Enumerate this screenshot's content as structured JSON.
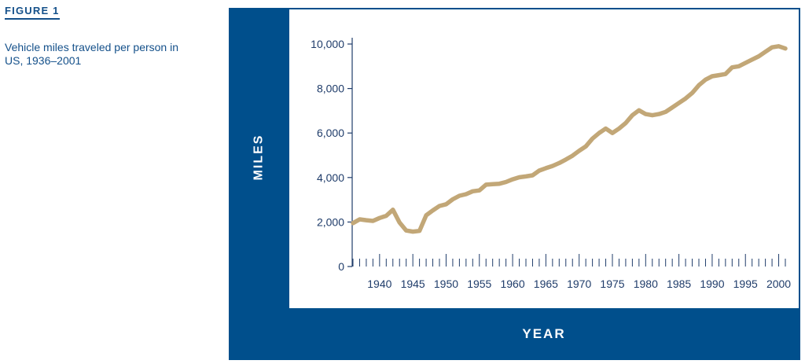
{
  "figure": {
    "label": "FIGURE 1",
    "caption": "Vehicle miles traveled per person in US, 1936–2001"
  },
  "colors": {
    "frame": "#004f8c",
    "line": "#c2a777",
    "text": "#14508a"
  },
  "chart_data": {
    "type": "line",
    "xlabel": "YEAR",
    "ylabel": "MILES",
    "ylim": [
      0,
      10000
    ],
    "xlim": [
      1936,
      2001
    ],
    "yticks": [
      0,
      2000,
      4000,
      6000,
      8000,
      10000
    ],
    "ytick_labels": [
      "0",
      "2,000",
      "4,000",
      "6,000",
      "8,000",
      "10,000"
    ],
    "xticks": [
      1940,
      1945,
      1950,
      1955,
      1960,
      1965,
      1970,
      1975,
      1980,
      1985,
      1990,
      1995,
      2000
    ],
    "xtick_labels": [
      "1940",
      "1945",
      "1950",
      "1955",
      "1960",
      "1965",
      "1970",
      "1975",
      "1980",
      "1985",
      "1990",
      "1995",
      "2000"
    ],
    "grid": false,
    "series": [
      {
        "x": [
          1936,
          1937,
          1938,
          1939,
          1940,
          1941,
          1942,
          1943,
          1944,
          1945,
          1946,
          1947,
          1948,
          1949,
          1950,
          1951,
          1952,
          1953,
          1954,
          1955,
          1956,
          1957,
          1958,
          1959,
          1960,
          1961,
          1962,
          1963,
          1964,
          1965,
          1966,
          1967,
          1968,
          1969,
          1970,
          1971,
          1972,
          1973,
          1974,
          1975,
          1976,
          1977,
          1978,
          1979,
          1980,
          1981,
          1982,
          1983,
          1984,
          1985,
          1986,
          1987,
          1988,
          1989,
          1990,
          1991,
          1992,
          1993,
          1994,
          1995,
          1996,
          1997,
          1998,
          1999,
          2000,
          2001
        ],
        "values": [
          1950,
          2120,
          2080,
          2050,
          2180,
          2280,
          2550,
          1980,
          1620,
          1570,
          1600,
          2300,
          2520,
          2720,
          2800,
          3020,
          3180,
          3250,
          3380,
          3420,
          3680,
          3700,
          3720,
          3800,
          3920,
          4010,
          4050,
          4100,
          4310,
          4420,
          4520,
          4650,
          4810,
          4980,
          5200,
          5400,
          5750,
          6000,
          6200,
          6000,
          6200,
          6450,
          6800,
          7020,
          6850,
          6800,
          6850,
          6950,
          7150,
          7350,
          7550,
          7800,
          8150,
          8400,
          8550,
          8600,
          8650,
          8950,
          9000,
          9150,
          9300,
          9450,
          9650,
          9850,
          9900,
          9800
        ]
      }
    ]
  }
}
